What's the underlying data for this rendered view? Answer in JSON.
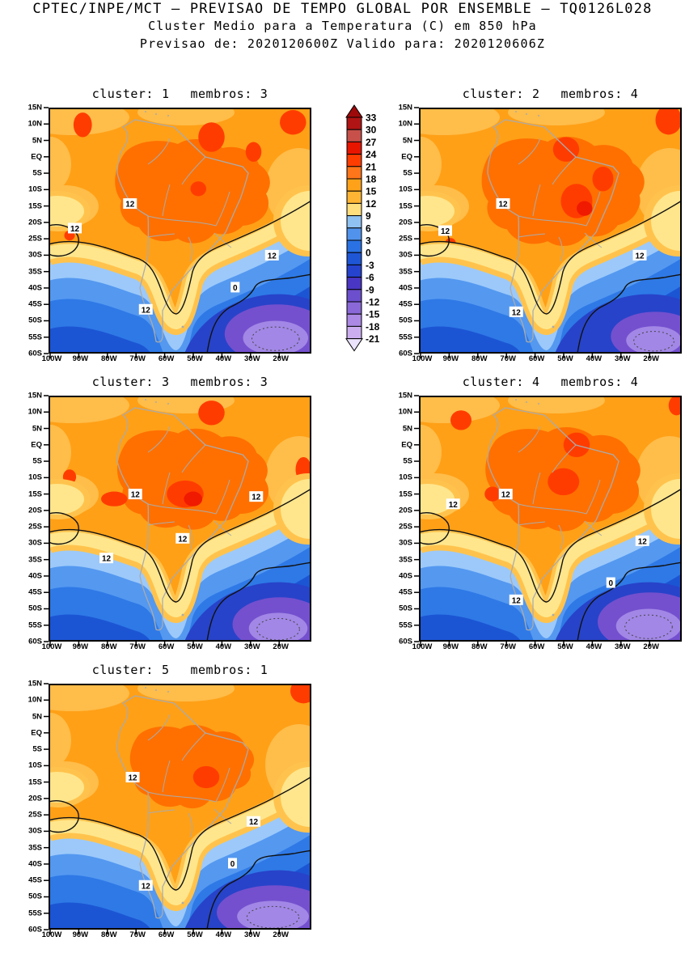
{
  "header": {
    "line1": "CPTEC/INPE/MCT – PREVISAO DE TEMPO GLOBAL POR ENSEMBLE – TQ0126L028",
    "line2": "Cluster Medio para a Temperatura (C) em 850 hPa",
    "line3": "Previsao de: 2020120600Z    Valido para: 2020120606Z"
  },
  "axis": {
    "lat_labels": [
      "15N",
      "10N",
      "5N",
      "EQ",
      "5S",
      "10S",
      "15S",
      "20S",
      "25S",
      "30S",
      "35S",
      "40S",
      "45S",
      "50S",
      "55S",
      "60S"
    ],
    "lon_labels": [
      "100W",
      "90W",
      "80W",
      "70W",
      "60W",
      "50W",
      "40W",
      "30W",
      "20W"
    ]
  },
  "colorbar": {
    "ticks": [
      "33",
      "30",
      "27",
      "24",
      "21",
      "18",
      "15",
      "12",
      "9",
      "6",
      "3",
      "0",
      "-3",
      "-6",
      "-9",
      "-12",
      "-15",
      "-18",
      "-21"
    ],
    "cell_colors": [
      "#B11414",
      "#C7504A",
      "#E81500",
      "#FF3D00",
      "#FF7519",
      "#FFA219",
      "#FFB533",
      "#FFDE7E",
      "#8FC2F2",
      "#5193EC",
      "#2A72E3",
      "#1E56D6",
      "#2543CD",
      "#4A36C4",
      "#6C4FCC",
      "#8A68D8",
      "#AB89E4",
      "#CCAEF0"
    ],
    "arrow_top_color": "#9E0A0A",
    "arrow_bottom_color": "#EBE2FB"
  },
  "map_palette": {
    "base_orange": "#FFA017",
    "light_orange": "#FFBD4A",
    "amazon_orange": "#FF7000",
    "hot_red": "#FF3C00",
    "deep_red": "#F01A00",
    "amber": "#FFC34D",
    "pale_yellow": "#FFE68C",
    "light_blue": "#9CC9FA",
    "mid_blue": "#5498F0",
    "blue": "#2E79E6",
    "deep_blue": "#1C55D4",
    "navy": "#2743C9",
    "purple": "#7450CE",
    "light_purple": "#A287E6",
    "coast_gray": "#ABABAB",
    "contour_black": "#111111"
  },
  "chart_data": {
    "type": "contour_map_grid",
    "title": "CPTEC/INPE/MCT – PREVISAO DE TEMPO GLOBAL POR ENSEMBLE – TQ0126L028",
    "subtitle": "Cluster Medio para a Temperatura (C) em 850 hPa",
    "variable": "Temperatura",
    "unit": "C",
    "level": "850 hPa",
    "model": "TQ0126L028",
    "init_time": "2020120600Z",
    "valid_time": "2020120606Z",
    "lat_range": [
      "15N",
      "60S"
    ],
    "lon_range": [
      "100W",
      "20W"
    ],
    "contour_interval": 3,
    "scale_ticks": [
      33,
      30,
      27,
      24,
      21,
      18,
      15,
      12,
      9,
      6,
      3,
      0,
      -3,
      -6,
      -9,
      -12,
      -15,
      -18,
      -21
    ],
    "legend_position": "top-center-between-first-row",
    "panels": [
      {
        "cluster_label": "cluster:",
        "cluster": "1",
        "membros_label": "membros:",
        "membros": "3",
        "contour_labels": [
          {
            "t": "12",
            "x": 0.1,
            "y": 0.49
          },
          {
            "t": "12",
            "x": 0.31,
            "y": 0.39
          },
          {
            "t": "12",
            "x": 0.85,
            "y": 0.6
          },
          {
            "t": "12",
            "x": 0.37,
            "y": 0.82
          },
          {
            "t": "0",
            "x": 0.71,
            "y": 0.73
          }
        ],
        "art": {
          "amazon": 1.0,
          "purple": [
            0.87,
            0.92,
            0.2,
            0.12
          ],
          "hot_spots": [
            [
              0.13,
              0.07,
              0.035,
              0.05
            ],
            [
              0.62,
              0.12,
              0.05,
              0.06
            ],
            [
              0.78,
              0.18,
              0.03,
              0.04
            ],
            [
              0.93,
              0.06,
              0.05,
              0.05
            ],
            [
              0.57,
              0.33,
              0.03,
              0.03
            ],
            [
              0.08,
              0.52,
              0.02,
              0.02
            ]
          ]
        }
      },
      {
        "cluster_label": "cluster:",
        "cluster": "2",
        "membros_label": "membros:",
        "membros": "4",
        "contour_labels": [
          {
            "t": "12",
            "x": 0.1,
            "y": 0.5
          },
          {
            "t": "12",
            "x": 0.32,
            "y": 0.39
          },
          {
            "t": "12",
            "x": 0.84,
            "y": 0.6
          },
          {
            "t": "12",
            "x": 0.37,
            "y": 0.83
          }
        ],
        "art": {
          "amazon": 1.05,
          "purple": [
            0.9,
            0.93,
            0.17,
            0.1
          ],
          "hot_spots": [
            [
              0.56,
              0.17,
              0.05,
              0.05
            ],
            [
              0.6,
              0.38,
              0.06,
              0.07
            ],
            [
              0.63,
              0.41,
              0.03,
              0.03,
              "deep"
            ],
            [
              0.95,
              0.05,
              0.05,
              0.06
            ],
            [
              0.7,
              0.29,
              0.04,
              0.05
            ],
            [
              0.12,
              0.55,
              0.02,
              0.02
            ]
          ]
        }
      },
      {
        "cluster_label": "cluster:",
        "cluster": "3",
        "membros_label": "membros:",
        "membros": "3",
        "contour_labels": [
          {
            "t": "12",
            "x": 0.33,
            "y": 0.4
          },
          {
            "t": "12",
            "x": 0.79,
            "y": 0.41
          },
          {
            "t": "12",
            "x": 0.51,
            "y": 0.58
          },
          {
            "t": "12",
            "x": 0.22,
            "y": 0.66
          }
        ],
        "art": {
          "amazon": 0.97,
          "purple": [
            0.88,
            0.93,
            0.18,
            0.11
          ],
          "hot_spots": [
            [
              0.52,
              0.4,
              0.07,
              0.055
            ],
            [
              0.55,
              0.42,
              0.035,
              0.03,
              "deep"
            ],
            [
              0.25,
              0.42,
              0.05,
              0.03
            ],
            [
              0.08,
              0.33,
              0.025,
              0.03
            ],
            [
              0.97,
              0.3,
              0.03,
              0.05
            ],
            [
              0.62,
              0.07,
              0.05,
              0.05
            ]
          ]
        }
      },
      {
        "cluster_label": "cluster:",
        "cluster": "4",
        "membros_label": "membros:",
        "membros": "4",
        "contour_labels": [
          {
            "t": "12",
            "x": 0.13,
            "y": 0.44
          },
          {
            "t": "12",
            "x": 0.33,
            "y": 0.4
          },
          {
            "t": "12",
            "x": 0.85,
            "y": 0.59
          },
          {
            "t": "12",
            "x": 0.37,
            "y": 0.83
          },
          {
            "t": "0",
            "x": 0.73,
            "y": 0.76
          }
        ],
        "art": {
          "amazon": 1.0,
          "purple": [
            0.88,
            0.92,
            0.2,
            0.12
          ],
          "hot_spots": [
            [
              0.55,
              0.35,
              0.06,
              0.055
            ],
            [
              0.6,
              0.2,
              0.05,
              0.05
            ],
            [
              0.16,
              0.1,
              0.04,
              0.04
            ],
            [
              0.28,
              0.4,
              0.03,
              0.03
            ],
            [
              0.98,
              0.04,
              0.03,
              0.04
            ]
          ]
        }
      },
      {
        "cluster_label": "cluster:",
        "cluster": "5",
        "membros_label": "membros:",
        "membros": "1",
        "contour_labels": [
          {
            "t": "12",
            "x": 0.32,
            "y": 0.38
          },
          {
            "t": "12",
            "x": 0.78,
            "y": 0.56
          },
          {
            "t": "12",
            "x": 0.37,
            "y": 0.82
          },
          {
            "t": "0",
            "x": 0.7,
            "y": 0.73
          }
        ],
        "art": {
          "amazon": 0.8,
          "purple": [
            0.86,
            0.93,
            0.22,
            0.11
          ],
          "hot_spots": [
            [
              0.6,
              0.38,
              0.05,
              0.045
            ],
            [
              0.97,
              0.03,
              0.05,
              0.05
            ]
          ]
        }
      }
    ]
  }
}
